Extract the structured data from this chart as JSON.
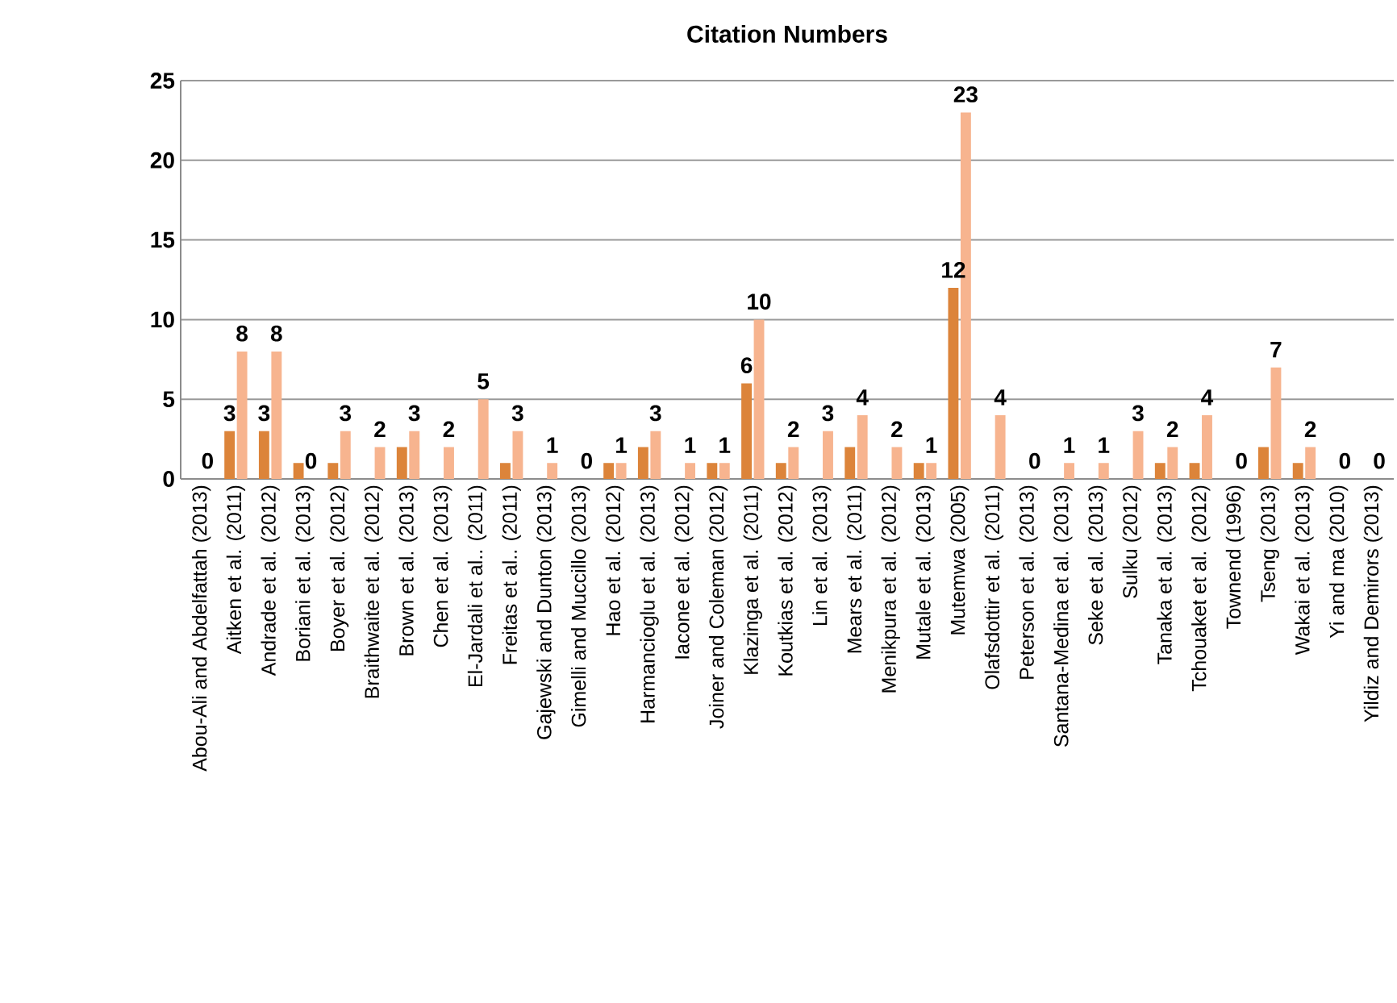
{
  "chart_data": {
    "type": "bar",
    "title": "Citation Numbers",
    "categories": [
      "Abou-Ali and Abdelfattah (2013)",
      "Aitken et al. (2011)",
      "Andrade et al. (2012)",
      "Boriani et al. (2013)",
      "Boyer et al. (2012)",
      "Braithwaite et al. (2012)",
      "Brown et al. (2013)",
      "Chen et al. (2013)",
      "El-Jardali et al.. (2011)",
      "Freitas et al.. (2011)",
      "Gajewski and Dunton (2013)",
      "Gimelli and Muccillo (2013)",
      "Hao et al. (2012)",
      "Harmancioglu et al. (2013)",
      "Iacone et al. (2012)",
      "Joiner and Coleman (2012)",
      "Klazinga et al. (2011)",
      "Koutkias et al. (2012)",
      "Lin et al. (2013)",
      "Mears et al. (2011)",
      "Menikpura et al. (2012)",
      "Mutale et al. (2013)",
      "Mutemwa (2005)",
      "Olafsdottir et al. (2011)",
      "Peterson et al. (2013)",
      "Santana-Medina et al. (2013)",
      "Seke et al. (2013)",
      "Sulku (2012)",
      "Tanaka et al. (2013)",
      "Tchouaket et al. (2012)",
      "Townend (1996)",
      "Tseng (2013)",
      "Wakai et al. (2013)",
      "Yi and ma  (2010)",
      "Yildiz and Demirors (2013)"
    ],
    "series": [
      {
        "color": "#dc843a",
        "values": [
          0,
          3,
          3,
          1,
          1,
          0,
          2,
          0,
          0,
          1,
          0,
          0,
          1,
          2,
          0,
          1,
          6,
          1,
          0,
          2,
          0,
          1,
          12,
          0,
          0,
          0,
          0,
          0,
          1,
          1,
          0,
          2,
          1,
          0,
          0
        ],
        "value_labels": [
          null,
          "3",
          "3",
          null,
          null,
          null,
          null,
          null,
          null,
          null,
          null,
          null,
          null,
          null,
          null,
          null,
          "6",
          null,
          null,
          null,
          null,
          null,
          "12",
          null,
          null,
          null,
          null,
          null,
          null,
          null,
          null,
          null,
          null,
          null,
          null
        ]
      },
      {
        "color": "#f7b48f",
        "values": [
          0,
          8,
          8,
          0,
          3,
          2,
          3,
          2,
          5,
          3,
          1,
          0,
          1,
          3,
          1,
          1,
          10,
          2,
          3,
          4,
          2,
          1,
          23,
          4,
          0,
          1,
          1,
          3,
          2,
          4,
          0,
          7,
          2,
          0,
          0
        ],
        "value_labels": [
          "0",
          "8",
          "8",
          "0",
          "3",
          "2",
          "3",
          "2",
          "5",
          "3",
          "1",
          "0",
          "1",
          "3",
          "1",
          "1",
          "10",
          "2",
          "3",
          "4",
          "2",
          "1",
          "23",
          "4",
          "0",
          "1",
          "1",
          "3",
          "2",
          "4",
          "0",
          "7",
          "2",
          "0",
          "0"
        ]
      }
    ],
    "ylim": [
      0,
      25
    ],
    "yticks": [
      0,
      5,
      10,
      15,
      20,
      25
    ],
    "grid": "y"
  }
}
